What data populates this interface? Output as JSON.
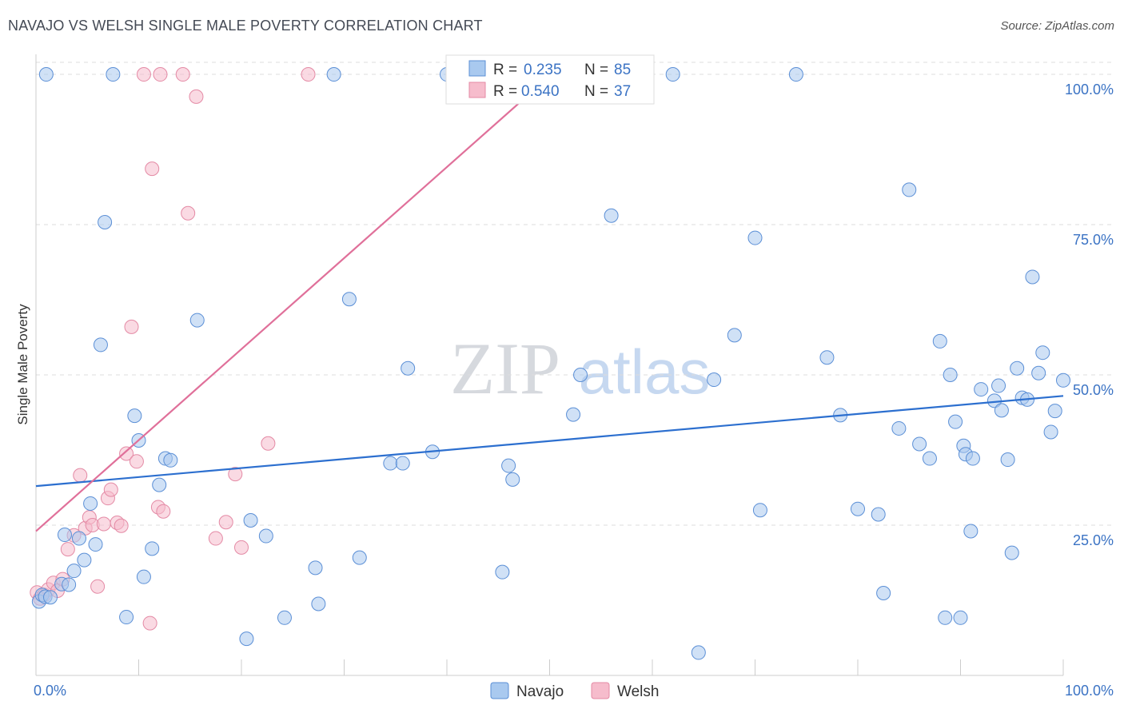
{
  "header": {
    "title": "NAVAJO VS WELSH SINGLE MALE POVERTY CORRELATION CHART",
    "source": "Source: ZipAtlas.com"
  },
  "watermark": {
    "zip": "ZIP",
    "atlas": "atlas"
  },
  "colors": {
    "navajo_fill": "#a9c9ef",
    "navajo_stroke": "#5b8fd6",
    "navajo_line": "#2c6fcf",
    "welsh_fill": "#f6bccc",
    "welsh_stroke": "#e48aa5",
    "welsh_line": "#e0709a",
    "tick_text": "#3b73c4",
    "grid": "#dddddd"
  },
  "legend": {
    "r_label": "R =",
    "n_label": "N =",
    "navajo": {
      "r": "0.235",
      "n": "85"
    },
    "welsh": {
      "r": "0.540",
      "n": "37"
    }
  },
  "chart_data": {
    "type": "scatter",
    "title": "NAVAJO VS WELSH SINGLE MALE POVERTY CORRELATION CHART",
    "xlabel": "",
    "ylabel": "Single Male Poverty",
    "xlim": [
      0,
      100
    ],
    "ylim": [
      0,
      102
    ],
    "x_tick_labels": [
      "0.0%",
      "100.0%"
    ],
    "y_ticks": [
      {
        "value": 25,
        "label": "25.0%"
      },
      {
        "value": 50,
        "label": "50.0%"
      },
      {
        "value": 75,
        "label": "75.0%"
      },
      {
        "value": 100,
        "label": "100.0%"
      }
    ],
    "grid": true,
    "legend_position": "top-center",
    "series": [
      {
        "name": "Navajo",
        "trend": [
          [
            0,
            31.5
          ],
          [
            100,
            46.5
          ]
        ],
        "points": [
          [
            0.3,
            12.3
          ],
          [
            0.6,
            13.4
          ],
          [
            0.9,
            13.1
          ],
          [
            1.4,
            13.0
          ],
          [
            2.5,
            15.2
          ],
          [
            2.8,
            23.4
          ],
          [
            3.2,
            15.1
          ],
          [
            3.7,
            17.4
          ],
          [
            4.2,
            22.8
          ],
          [
            4.7,
            19.2
          ],
          [
            5.3,
            28.6
          ],
          [
            5.8,
            21.8
          ],
          [
            6.3,
            55.0
          ],
          [
            6.7,
            75.4
          ],
          [
            7.5,
            100.0
          ],
          [
            8.8,
            9.7
          ],
          [
            9.6,
            43.2
          ],
          [
            10.0,
            39.1
          ],
          [
            10.5,
            16.4
          ],
          [
            11.3,
            21.1
          ],
          [
            12.0,
            31.7
          ],
          [
            12.6,
            36.1
          ],
          [
            13.1,
            35.8
          ],
          [
            15.7,
            59.1
          ],
          [
            20.5,
            6.1
          ],
          [
            20.9,
            25.8
          ],
          [
            22.4,
            23.2
          ],
          [
            24.2,
            9.6
          ],
          [
            27.2,
            17.9
          ],
          [
            27.5,
            11.9
          ],
          [
            29.0,
            100.0
          ],
          [
            30.5,
            62.6
          ],
          [
            31.5,
            19.6
          ],
          [
            34.5,
            35.3
          ],
          [
            35.7,
            35.3
          ],
          [
            36.2,
            51.1
          ],
          [
            38.6,
            37.2
          ],
          [
            40.0,
            100.0
          ],
          [
            45.4,
            17.2
          ],
          [
            46.0,
            34.9
          ],
          [
            46.4,
            32.6
          ],
          [
            52.3,
            43.4
          ],
          [
            53.0,
            50.0
          ],
          [
            56.0,
            76.5
          ],
          [
            62.0,
            100.0
          ],
          [
            64.5,
            3.8
          ],
          [
            66.0,
            49.2
          ],
          [
            68.0,
            56.6
          ],
          [
            70.0,
            72.8
          ],
          [
            70.5,
            27.5
          ],
          [
            77.0,
            52.9
          ],
          [
            78.3,
            43.3
          ],
          [
            80.0,
            27.7
          ],
          [
            82.0,
            26.8
          ],
          [
            82.5,
            13.7
          ],
          [
            84.0,
            41.1
          ],
          [
            85.0,
            80.8
          ],
          [
            86.0,
            38.5
          ],
          [
            87.0,
            36.1
          ],
          [
            88.0,
            55.6
          ],
          [
            88.5,
            9.6
          ],
          [
            89.0,
            50.0
          ],
          [
            89.5,
            42.2
          ],
          [
            90.0,
            9.6
          ],
          [
            90.3,
            38.2
          ],
          [
            90.5,
            36.8
          ],
          [
            91.0,
            24.0
          ],
          [
            91.2,
            36.1
          ],
          [
            92.0,
            47.6
          ],
          [
            93.3,
            45.7
          ],
          [
            93.7,
            48.2
          ],
          [
            94.0,
            44.1
          ],
          [
            94.6,
            35.9
          ],
          [
            95.0,
            20.4
          ],
          [
            95.5,
            51.1
          ],
          [
            96.0,
            46.2
          ],
          [
            96.5,
            45.9
          ],
          [
            97.0,
            66.3
          ],
          [
            97.6,
            50.3
          ],
          [
            98.0,
            53.7
          ],
          [
            98.8,
            40.5
          ],
          [
            99.2,
            44.0
          ],
          [
            100.0,
            49.1
          ],
          [
            1.0,
            100.0
          ],
          [
            74.0,
            100.0
          ]
        ]
      },
      {
        "name": "Welsh",
        "trend": [
          [
            0,
            24.0
          ],
          [
            51.5,
            102.0
          ]
        ],
        "points": [
          [
            0.1,
            13.8
          ],
          [
            0.4,
            12.8
          ],
          [
            0.8,
            13.4
          ],
          [
            1.2,
            14.3
          ],
          [
            1.7,
            15.4
          ],
          [
            2.1,
            14.1
          ],
          [
            2.6,
            16.0
          ],
          [
            3.1,
            21.0
          ],
          [
            3.7,
            23.3
          ],
          [
            4.3,
            33.3
          ],
          [
            4.8,
            24.5
          ],
          [
            5.2,
            26.3
          ],
          [
            5.5,
            25.0
          ],
          [
            6.0,
            14.8
          ],
          [
            6.6,
            25.2
          ],
          [
            7.0,
            29.5
          ],
          [
            7.3,
            30.9
          ],
          [
            7.9,
            25.4
          ],
          [
            8.3,
            24.9
          ],
          [
            8.8,
            36.9
          ],
          [
            9.3,
            58.0
          ],
          [
            9.8,
            35.6
          ],
          [
            10.5,
            100.0
          ],
          [
            11.1,
            8.7
          ],
          [
            11.3,
            84.3
          ],
          [
            11.9,
            28.0
          ],
          [
            12.1,
            100.0
          ],
          [
            12.4,
            27.3
          ],
          [
            14.3,
            100.0
          ],
          [
            14.8,
            76.9
          ],
          [
            15.6,
            96.3
          ],
          [
            17.5,
            22.8
          ],
          [
            18.5,
            25.5
          ],
          [
            19.4,
            33.5
          ],
          [
            20.0,
            21.3
          ],
          [
            22.6,
            38.6
          ],
          [
            26.5,
            100.0
          ]
        ]
      }
    ]
  },
  "bottom_legend": {
    "navajo": "Navajo",
    "welsh": "Welsh"
  }
}
